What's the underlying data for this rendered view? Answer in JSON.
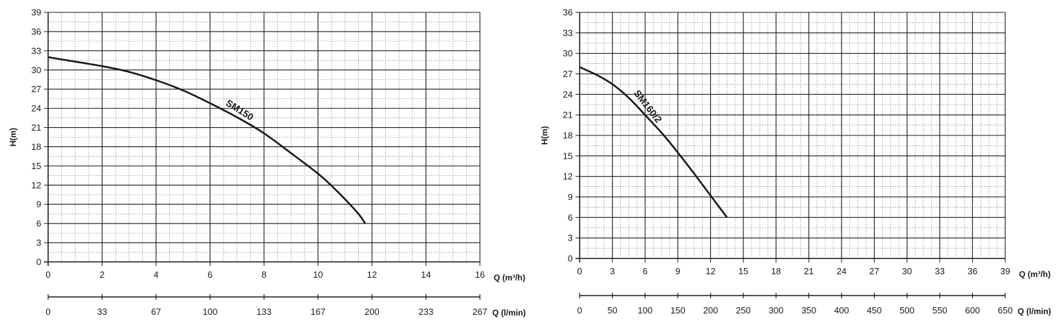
{
  "chart_data": [
    {
      "type": "line",
      "ylabel": "H(m)",
      "xlabel": "Q (m³/h)",
      "x2label": "Q (l/min)",
      "xlim": [
        0,
        16
      ],
      "ylim": [
        0,
        39
      ],
      "x_ticks": [
        "0",
        "2",
        "4",
        "6",
        "8",
        "10",
        "12",
        "14",
        "16"
      ],
      "x2_ticks": [
        "0",
        "33",
        "67",
        "100",
        "133",
        "167",
        "200",
        "233",
        "267"
      ],
      "y_ticks": [
        "0",
        "3",
        "6",
        "9",
        "12",
        "15",
        "18",
        "21",
        "24",
        "27",
        "30",
        "33",
        "36",
        "39"
      ],
      "grid": true,
      "series": [
        {
          "name": "SM150",
          "x": [
            0,
            1,
            2,
            3,
            4,
            5,
            6,
            7,
            8,
            9,
            10,
            10.5,
            11,
            11.5,
            11.75
          ],
          "y": [
            32,
            31.3,
            30.6,
            29.7,
            28.4,
            26.8,
            24.8,
            22.6,
            20.1,
            17,
            13.8,
            11.9,
            9.8,
            7.5,
            6
          ]
        }
      ]
    },
    {
      "type": "line",
      "ylabel": "H(m)",
      "xlabel": "Q (m³/h)",
      "x2label": "Q (l/min)",
      "xlim": [
        0,
        39
      ],
      "ylim": [
        0,
        36
      ],
      "x_ticks": [
        "0",
        "3",
        "6",
        "9",
        "12",
        "15",
        "18",
        "21",
        "24",
        "27",
        "30",
        "33",
        "36",
        "39"
      ],
      "x2_ticks": [
        "0",
        "50",
        "100",
        "150",
        "200",
        "250",
        "300",
        "350",
        "400",
        "450",
        "500",
        "550",
        "600",
        "650"
      ],
      "y_ticks": [
        "0",
        "3",
        "6",
        "9",
        "12",
        "15",
        "18",
        "21",
        "24",
        "27",
        "30",
        "33",
        "36"
      ],
      "grid": true,
      "series": [
        {
          "name": "SM160/2",
          "x": [
            0,
            1.5,
            3,
            4.5,
            6,
            7.5,
            9,
            10.5,
            12,
            13.5
          ],
          "y": [
            28,
            26.9,
            25.5,
            23.5,
            21,
            18.4,
            15.5,
            12.4,
            9.2,
            6
          ]
        }
      ]
    }
  ]
}
